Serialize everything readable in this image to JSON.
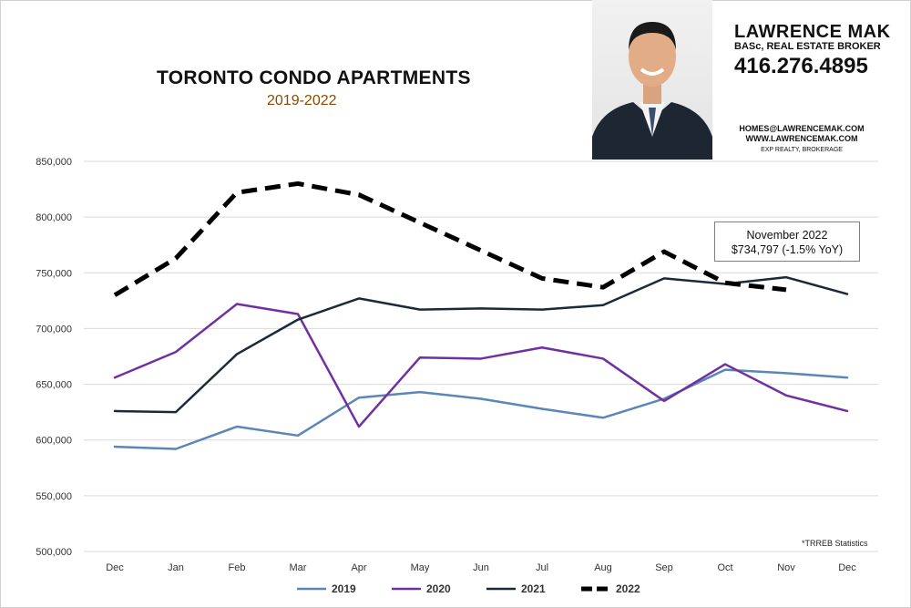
{
  "header": {
    "title": "TORONTO CONDO APARTMENTS",
    "subtitle": "2019-2022"
  },
  "agent": {
    "name": "LAWRENCE MAK",
    "title": "BASc, REAL ESTATE BROKER",
    "phone": "416.276.4895",
    "email": "HOMES@LAWRENCEMAK.COM",
    "website": "WWW.LAWRENCEMAK.COM",
    "brokerage": "EXP REALTY, BROKERAGE"
  },
  "annotation": {
    "line1": "November 2022",
    "line2": "$734,797  (-1.5%  YoY)"
  },
  "source_note": "*TRREB Statistics",
  "chart_data": {
    "type": "line",
    "categories": [
      "Dec",
      "Jan",
      "Feb",
      "Mar",
      "Apr",
      "May",
      "Jun",
      "Jul",
      "Aug",
      "Sep",
      "Oct",
      "Nov",
      "Dec"
    ],
    "ylim": [
      500000,
      850000
    ],
    "yticks": [
      500000,
      550000,
      600000,
      650000,
      700000,
      750000,
      800000,
      850000
    ],
    "ytick_labels": [
      "500,000",
      "550,000",
      "600,000",
      "650,000",
      "700,000",
      "750,000",
      "800,000",
      "850,000"
    ],
    "grid": true,
    "legend_position": "bottom",
    "series": [
      {
        "name": "2019",
        "color": "#5b86b8",
        "style": "solid",
        "values": [
          594000,
          592000,
          612000,
          604000,
          638000,
          643000,
          637000,
          628000,
          620000,
          637000,
          663000,
          660000,
          656000
        ]
      },
      {
        "name": "2020",
        "color": "#7030a0",
        "style": "solid",
        "values": [
          656000,
          679000,
          722000,
          713000,
          612000,
          674000,
          673000,
          683000,
          673000,
          635000,
          668000,
          640000,
          626000
        ]
      },
      {
        "name": "2021",
        "color": "#1b2a3a",
        "style": "solid",
        "values": [
          626000,
          625000,
          677000,
          708000,
          727000,
          717000,
          718000,
          717000,
          721000,
          745000,
          740000,
          746000,
          731000
        ]
      },
      {
        "name": "2022",
        "color": "#000000",
        "style": "dashed",
        "values": [
          730000,
          763000,
          822000,
          830000,
          820000,
          795000,
          770000,
          745000,
          737000,
          769000,
          741000,
          734797,
          null
        ]
      }
    ]
  }
}
